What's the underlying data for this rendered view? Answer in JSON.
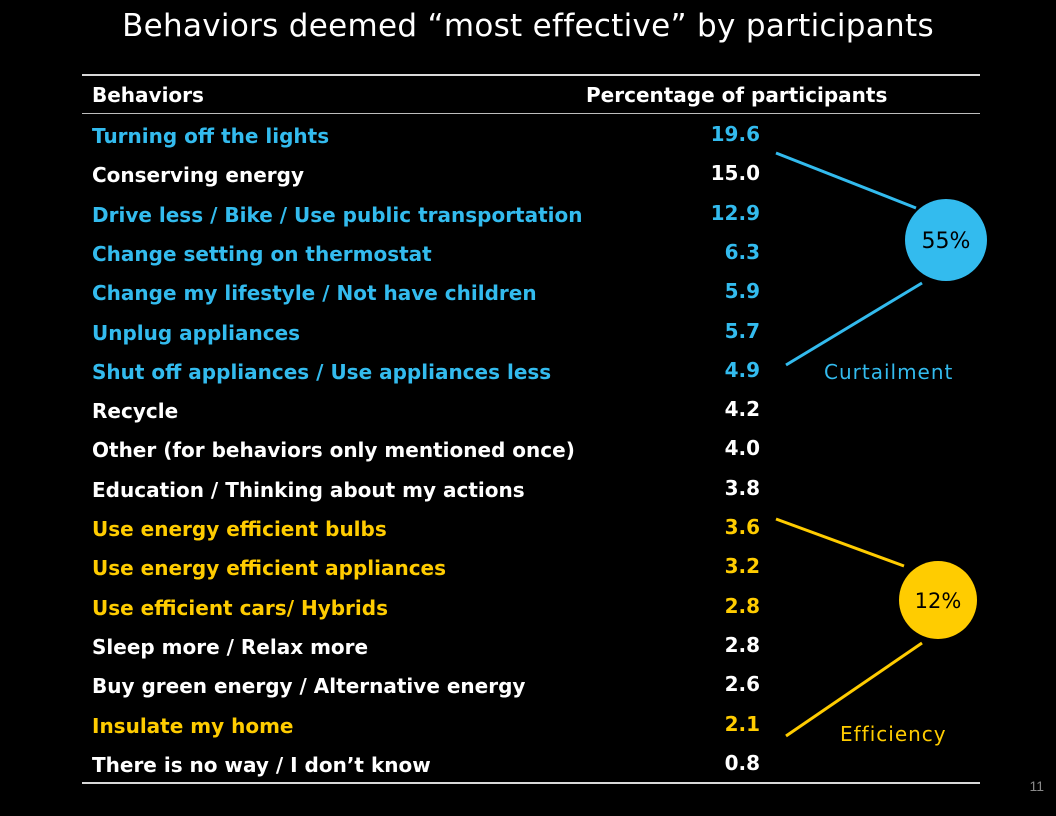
{
  "title": "Behaviors deemed “most effective” by participants",
  "colors": {
    "background": "#000000",
    "default_text": "#ffffff",
    "curtailment": "#33bbee",
    "efficiency": "#ffcc00"
  },
  "table": {
    "headers": {
      "behaviors": "Behaviors",
      "percentage": "Percentage of participants"
    },
    "rows": [
      {
        "behavior": "Turning off the lights",
        "value": "19.6",
        "group": "curtailment"
      },
      {
        "behavior": "Conserving energy",
        "value": "15.0",
        "group": "none"
      },
      {
        "behavior": "Drive less / Bike / Use public transportation",
        "value": "12.9",
        "group": "curtailment"
      },
      {
        "behavior": "Change setting on thermostat",
        "value": "6.3",
        "group": "curtailment"
      },
      {
        "behavior": "Change my lifestyle / Not have children",
        "value": "5.9",
        "group": "curtailment"
      },
      {
        "behavior": "Unplug appliances",
        "value": "5.7",
        "group": "curtailment"
      },
      {
        "behavior": "Shut off appliances / Use appliances less",
        "value": "4.9",
        "group": "curtailment"
      },
      {
        "behavior": "Recycle",
        "value": "4.2",
        "group": "none"
      },
      {
        "behavior": "Other (for behaviors only mentioned once)",
        "value": "4.0",
        "group": "none"
      },
      {
        "behavior": "Education / Thinking about my actions",
        "value": "3.8",
        "group": "none"
      },
      {
        "behavior": "Use energy efficient bulbs",
        "value": "3.6",
        "group": "efficiency"
      },
      {
        "behavior": "Use energy efficient appliances",
        "value": "3.2",
        "group": "efficiency"
      },
      {
        "behavior": "Use efficient cars/ Hybrids",
        "value": "2.8",
        "group": "efficiency"
      },
      {
        "behavior": "Sleep more / Relax more",
        "value": "2.8",
        "group": "none"
      },
      {
        "behavior": "Buy green energy / Alternative energy",
        "value": "2.6",
        "group": "none"
      },
      {
        "behavior": "Insulate my home",
        "value": "2.1",
        "group": "efficiency"
      },
      {
        "behavior": "There is no way / I don’t know",
        "value": "0.8",
        "group": "none"
      }
    ]
  },
  "groups": {
    "curtailment": {
      "label": "Curtailment",
      "total": "55%"
    },
    "efficiency": {
      "label": "Efficiency",
      "total": "12%"
    }
  },
  "page_number": "11"
}
